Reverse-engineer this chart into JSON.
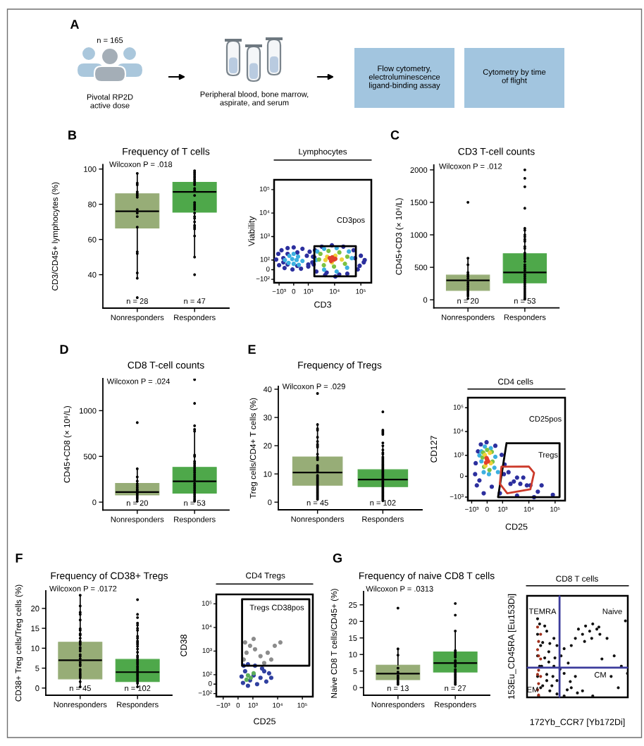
{
  "chart_data": [
    {
      "type": "other",
      "annotations": [
        "A",
        "n = 165",
        "Pivotal RP2D\nactive dose",
        "Peripheral blood, bone marrow,\naspirate, and serum",
        "Flow cytometry,\nelectroluminescence\nligand-binding assay",
        "Cytometry by time\nof flight"
      ]
    },
    {
      "type": "box",
      "title": "Frequency of T cells",
      "ylabel": "CD3/CD45+ lymphocytes (%)",
      "categories": [
        "Nonresponders",
        "Responders"
      ],
      "boxes": [
        {
          "low": 38,
          "q1": 66.5,
          "median": 76,
          "q3": 86,
          "high": 97.5
        },
        {
          "low": 50,
          "q1": 75.5,
          "median": 87,
          "q3": 92.5,
          "high": 99
        }
      ],
      "colors": [
        "#97ad77",
        "#4ea84a"
      ],
      "ylim": [
        21,
        102.5
      ],
      "yticks": [
        40,
        60,
        80,
        100
      ],
      "annotations": [
        "B",
        "Wilcoxon P = .018",
        "n = 28",
        "n = 47"
      ],
      "series": [
        {
          "type": "scatter",
          "color": "#000000",
          "x": [
            "Nonresponders",
            "Nonresponders",
            "Nonresponders",
            "Nonresponders",
            "Nonresponders",
            "Nonresponders",
            "Nonresponders",
            "Nonresponders",
            "Nonresponders",
            "Nonresponders",
            "Nonresponders",
            "Nonresponders",
            "Nonresponders",
            "Nonresponders",
            "Nonresponders",
            "Nonresponders"
          ],
          "values": [
            97.5,
            92,
            91,
            87,
            86,
            85,
            84,
            77,
            75,
            73,
            67,
            53,
            52,
            41,
            38,
            27
          ]
        },
        {
          "type": "scatter",
          "color": "#000000",
          "x": [
            "Responders",
            "Responders",
            "Responders",
            "Responders",
            "Responders",
            "Responders",
            "Responders",
            "Responders",
            "Responders",
            "Responders",
            "Responders",
            "Responders",
            "Responders",
            "Responders",
            "Responders",
            "Responders",
            "Responders",
            "Responders",
            "Responders",
            "Responders",
            "Responders",
            "Responders",
            "Responders",
            "Responders",
            "Responders",
            "Responders",
            "Responders"
          ],
          "values": [
            99,
            98,
            97,
            96,
            95,
            94,
            93,
            92,
            91,
            89,
            88,
            85,
            81,
            80,
            79,
            78,
            77,
            75,
            73,
            72,
            70,
            68,
            67,
            66,
            62,
            50,
            40
          ]
        }
      ]
    },
    {
      "type": "other",
      "title": "Lymphocytes",
      "xlabel": "CD3",
      "ylabel": "Viability",
      "annotations": [
        "CD3pos",
        "−10³",
        "0",
        "10³",
        "10⁴",
        "10⁵",
        "−10²",
        "0",
        "10²",
        "10³",
        "10⁴",
        "10⁵"
      ]
    },
    {
      "type": "box",
      "title": "CD3 T-cell counts",
      "ylabel": "CD45+CD3 (× 10⁶/L)",
      "categories": [
        "Nonresponders",
        "Responders"
      ],
      "boxes": [
        {
          "low": 20,
          "q1": 145,
          "median": 300,
          "q3": 380,
          "high": 640
        },
        {
          "low": 10,
          "q1": 260,
          "median": 420,
          "q3": 710,
          "high": 1100
        }
      ],
      "colors": [
        "#97ad77",
        "#4ea84a"
      ],
      "ylim": [
        -125,
        2075
      ],
      "yticks": [
        0,
        500,
        1000,
        1500,
        2000
      ],
      "annotations": [
        "C",
        "Wilcoxon P = .012",
        "n = 20",
        "n = 53"
      ],
      "series": [
        {
          "type": "scatter",
          "color": "#000000",
          "x": [
            "Nonresponders",
            "Nonresponders",
            "Nonresponders",
            "Nonresponders",
            "Nonresponders",
            "Nonresponders",
            "Nonresponders",
            "Nonresponders",
            "Nonresponders",
            "Nonresponders",
            "Nonresponders",
            "Nonresponders",
            "Nonresponders",
            "Nonresponders",
            "Nonresponders",
            "Nonresponders"
          ],
          "values": [
            1500,
            640,
            540,
            420,
            390,
            360,
            330,
            270,
            240,
            210,
            180,
            150,
            120,
            90,
            60,
            20
          ]
        },
        {
          "type": "scatter",
          "color": "#000000",
          "x": [
            "Responders",
            "Responders",
            "Responders",
            "Responders",
            "Responders",
            "Responders",
            "Responders",
            "Responders",
            "Responders",
            "Responders",
            "Responders",
            "Responders",
            "Responders",
            "Responders",
            "Responders",
            "Responders",
            "Responders",
            "Responders",
            "Responders",
            "Responders",
            "Responders",
            "Responders",
            "Responders",
            "Responders",
            "Responders",
            "Responders",
            "Responders",
            "Responders",
            "Responders",
            "Responders",
            "Responders",
            "Responders",
            "Responders",
            "Responders",
            "Responders"
          ],
          "values": [
            2000,
            1870,
            1740,
            1410,
            1100,
            1070,
            1000,
            970,
            930,
            900,
            820,
            790,
            720,
            690,
            660,
            630,
            590,
            540,
            510,
            480,
            450,
            390,
            360,
            330,
            300,
            270,
            240,
            210,
            180,
            150,
            120,
            90,
            60,
            30,
            10
          ]
        }
      ]
    },
    {
      "type": "box",
      "title": "CD8 T-cell counts",
      "ylabel": "CD45+CD8 (× 10⁶/L)",
      "categories": [
        "Nonresponders",
        "Responders"
      ],
      "boxes": [
        {
          "low": 10,
          "q1": 78,
          "median": 110,
          "q3": 205,
          "high": 365
        },
        {
          "low": 10,
          "q1": 98,
          "median": 227,
          "q3": 381,
          "high": 795
        }
      ],
      "colors": [
        "#97ad77",
        "#4ea84a"
      ],
      "ylim": [
        -86,
        1350
      ],
      "yticks": [
        0,
        500,
        1000
      ],
      "annotations": [
        "D",
        "Wilcoxon P = .024",
        "n = 20",
        "n = 53"
      ],
      "series": [
        {
          "type": "scatter",
          "color": "#000000",
          "x": [
            "Nonresponders",
            "Nonresponders",
            "Nonresponders",
            "Nonresponders",
            "Nonresponders",
            "Nonresponders",
            "Nonresponders",
            "Nonresponders",
            "Nonresponders",
            "Nonresponders",
            "Nonresponders",
            "Nonresponders",
            "Nonresponders",
            "Nonresponders"
          ],
          "values": [
            870,
            365,
            275,
            230,
            200,
            180,
            160,
            140,
            125,
            95,
            75,
            55,
            35,
            10
          ]
        },
        {
          "type": "scatter",
          "color": "#000000",
          "x": [
            "Responders",
            "Responders",
            "Responders",
            "Responders",
            "Responders",
            "Responders",
            "Responders",
            "Responders",
            "Responders",
            "Responders",
            "Responders",
            "Responders",
            "Responders",
            "Responders",
            "Responders",
            "Responders",
            "Responders",
            "Responders",
            "Responders",
            "Responders",
            "Responders",
            "Responders",
            "Responders",
            "Responders",
            "Responders",
            "Responders",
            "Responders",
            "Responders",
            "Responders"
          ],
          "values": [
            1340,
            1080,
            835,
            795,
            775,
            515,
            500,
            445,
            425,
            405,
            385,
            365,
            345,
            325,
            305,
            285,
            265,
            245,
            205,
            185,
            165,
            145,
            125,
            105,
            85,
            65,
            45,
            25,
            10
          ]
        }
      ]
    },
    {
      "type": "box",
      "title": "Frequency of Tregs",
      "ylabel": "Treg cells/CD4+ T cells (%)",
      "categories": [
        "Nonresponders",
        "Responders"
      ],
      "boxes": [
        {
          "low": 1,
          "q1": 6,
          "median": 10.5,
          "q3": 16,
          "high": 27.5
        },
        {
          "low": 0.5,
          "q1": 5.5,
          "median": 8,
          "q3": 11.5,
          "high": 20
        }
      ],
      "colors": [
        "#97ad77",
        "#4ea84a"
      ],
      "ylim": [
        -2.7,
        41
      ],
      "yticks": [
        0,
        10,
        20,
        30,
        40
      ],
      "annotations": [
        "E",
        "Wilcoxon P = .029",
        "n = 45",
        "n = 102"
      ],
      "series": [
        {
          "type": "scatter",
          "color": "#000000",
          "x": [
            "Nonresponders",
            "Nonresponders",
            "Nonresponders",
            "Nonresponders",
            "Nonresponders",
            "Nonresponders",
            "Nonresponders",
            "Nonresponders",
            "Nonresponders",
            "Nonresponders",
            "Nonresponders",
            "Nonresponders",
            "Nonresponders",
            "Nonresponders",
            "Nonresponders",
            "Nonresponders",
            "Nonresponders",
            "Nonresponders",
            "Nonresponders",
            "Nonresponders",
            "Nonresponders",
            "Nonresponders",
            "Nonresponders",
            "Nonresponders",
            "Nonresponders",
            "Nonresponders",
            "Nonresponders",
            "Nonresponders",
            "Nonresponders",
            "Nonresponders",
            "Nonresponders",
            "Nonresponders",
            "Nonresponders",
            "Nonresponders",
            "Nonresponders",
            "Nonresponders"
          ],
          "values": [
            38.5,
            27.5,
            26,
            25.5,
            23,
            21.5,
            20.5,
            20,
            19.5,
            17,
            16,
            15.5,
            15,
            13,
            12.5,
            12,
            11.5,
            11,
            9.5,
            9,
            8.5,
            8,
            7.5,
            7,
            6.5,
            6,
            5.5,
            5,
            4.5,
            4,
            3.5,
            3,
            2.5,
            2,
            1.5,
            1
          ]
        },
        {
          "type": "scatter",
          "color": "#000000",
          "x": [
            "Responders",
            "Responders",
            "Responders",
            "Responders",
            "Responders",
            "Responders",
            "Responders",
            "Responders",
            "Responders",
            "Responders",
            "Responders",
            "Responders",
            "Responders",
            "Responders",
            "Responders",
            "Responders",
            "Responders",
            "Responders",
            "Responders",
            "Responders",
            "Responders",
            "Responders",
            "Responders",
            "Responders",
            "Responders",
            "Responders",
            "Responders",
            "Responders",
            "Responders",
            "Responders",
            "Responders",
            "Responders",
            "Responders",
            "Responders",
            "Responders",
            "Responders",
            "Responders",
            "Responders",
            "Responders",
            "Responders",
            "Responders"
          ],
          "values": [
            32,
            25.5,
            25,
            24.5,
            24,
            21,
            20,
            18.5,
            17.5,
            17,
            16,
            15.5,
            15,
            14.5,
            14,
            13.5,
            13,
            12.5,
            12,
            11.5,
            11,
            10.5,
            10,
            9.5,
            9,
            8.5,
            7.5,
            7,
            6.5,
            6,
            5.5,
            5,
            4.5,
            4,
            3.5,
            3,
            2.5,
            2,
            1.5,
            1,
            0.5
          ]
        }
      ]
    },
    {
      "type": "other",
      "title": "CD4 cells",
      "xlabel": "CD25",
      "ylabel": "CD127",
      "annotations": [
        "CD25pos",
        "Tregs",
        "−10³",
        "0",
        "10³",
        "10⁴",
        "10⁵",
        "−10³",
        "0",
        "10³",
        "10⁴",
        "10⁵"
      ]
    },
    {
      "type": "box",
      "title": "Frequency of CD38+ Tregs",
      "ylabel": "CD38+ Treg cells/Treg cells (%)",
      "categories": [
        "Nonresponders",
        "Responders"
      ],
      "boxes": [
        {
          "low": 0.3,
          "q1": 2.3,
          "median": 7,
          "q3": 11.5,
          "high": 23.3
        },
        {
          "low": 0.3,
          "q1": 1.6,
          "median": 4,
          "q3": 7.2,
          "high": 16.3
        }
      ],
      "colors": [
        "#97ad77",
        "#4ea84a"
      ],
      "ylim": [
        -1.8,
        24.4
      ],
      "yticks": [
        0,
        5,
        10,
        15,
        20
      ],
      "annotations": [
        "F",
        "Wilcoxon P = .0172",
        "n = 45",
        "n = 102"
      ],
      "series": [
        {
          "type": "scatter",
          "color": "#000000",
          "x": [
            "Nonresponders",
            "Nonresponders",
            "Nonresponders",
            "Nonresponders",
            "Nonresponders",
            "Nonresponders",
            "Nonresponders",
            "Nonresponders",
            "Nonresponders",
            "Nonresponders",
            "Nonresponders",
            "Nonresponders",
            "Nonresponders",
            "Nonresponders",
            "Nonresponders",
            "Nonresponders",
            "Nonresponders",
            "Nonresponders",
            "Nonresponders",
            "Nonresponders",
            "Nonresponders",
            "Nonresponders",
            "Nonresponders",
            "Nonresponders",
            "Nonresponders",
            "Nonresponders",
            "Nonresponders",
            "Nonresponders",
            "Nonresponders",
            "Nonresponders"
          ],
          "values": [
            23.3,
            20.6,
            19,
            18.5,
            17.1,
            14.9,
            14.5,
            13.6,
            13.3,
            12.5,
            11.7,
            11.3,
            10.9,
            10.2,
            9.8,
            9.3,
            8.4,
            8,
            7.4,
            6.5,
            6,
            5.6,
            4.7,
            4.3,
            3.8,
            3.4,
            3,
            2.6,
            1.6,
            0.3
          ]
        },
        {
          "type": "scatter",
          "color": "#000000",
          "x": [
            "Responders",
            "Responders",
            "Responders",
            "Responders",
            "Responders",
            "Responders",
            "Responders",
            "Responders",
            "Responders",
            "Responders",
            "Responders",
            "Responders",
            "Responders",
            "Responders",
            "Responders",
            "Responders",
            "Responders",
            "Responders",
            "Responders",
            "Responders",
            "Responders",
            "Responders",
            "Responders",
            "Responders",
            "Responders",
            "Responders",
            "Responders",
            "Responders",
            "Responders",
            "Responders",
            "Responders",
            "Responders",
            "Responders"
          ],
          "values": [
            22.2,
            18.5,
            17.7,
            16.3,
            15.8,
            15,
            14.5,
            13,
            12.5,
            11.8,
            11.4,
            11,
            10.5,
            9.8,
            9,
            8.1,
            7.7,
            7.2,
            6.8,
            6.4,
            6,
            5.5,
            5.1,
            4.7,
            4.3,
            3.6,
            3.2,
            2.8,
            2.4,
            2,
            1.6,
            1.2,
            0.3
          ]
        }
      ]
    },
    {
      "type": "other",
      "title": "CD4 Tregs",
      "xlabel": "CD25",
      "ylabel": "CD38",
      "annotations": [
        "Tregs CD38pos",
        "−10³",
        "0",
        "10³",
        "10⁴",
        "10⁵",
        "−10²",
        "0",
        "10²",
        "10³",
        "10⁴",
        "10⁵"
      ]
    },
    {
      "type": "box",
      "title": "Frequency of naive CD8 T cells",
      "ylabel": "Naive CD8 T cells/CD45+ (%)",
      "categories": [
        "Nonresponders",
        "Responders"
      ],
      "boxes": [
        {
          "low": 1,
          "q1": 2.4,
          "median": 4.2,
          "q3": 6.8,
          "high": 11.7
        },
        {
          "low": 1,
          "q1": 4.7,
          "median": 7.4,
          "q3": 10.8,
          "high": 17.1
        }
      ],
      "colors": [
        "#97ad77",
        "#4ea84a"
      ],
      "ylim": [
        -2.3,
        29
      ],
      "yticks": [
        0,
        5,
        10,
        15,
        20,
        25
      ],
      "annotations": [
        "G",
        "Wilcoxon P = .0313",
        "n = 13",
        "n = 27"
      ],
      "series": [
        {
          "type": "scatter",
          "color": "#000000",
          "x": [
            "Nonresponders",
            "Nonresponders",
            "Nonresponders",
            "Nonresponders",
            "Nonresponders",
            "Nonresponders",
            "Nonresponders",
            "Nonresponders",
            "Nonresponders",
            "Nonresponders",
            "Nonresponders"
          ],
          "values": [
            24,
            11.7,
            9.8,
            5.9,
            4.7,
            3.6,
            3.1,
            2.6,
            2,
            1.5,
            1
          ]
        },
        {
          "type": "scatter",
          "color": "#000000",
          "x": [
            "Responders",
            "Responders",
            "Responders",
            "Responders",
            "Responders",
            "Responders",
            "Responders",
            "Responders",
            "Responders",
            "Responders",
            "Responders",
            "Responders",
            "Responders",
            "Responders",
            "Responders",
            "Responders",
            "Responders",
            "Responders",
            "Responders",
            "Responders",
            "Responders",
            "Responders"
          ],
          "values": [
            25.4,
            21.9,
            17.1,
            11.2,
            10.7,
            10.2,
            9.7,
            9.2,
            8.2,
            7.8,
            6.9,
            6.4,
            5.5,
            5,
            4.5,
            4,
            3.5,
            3,
            2.5,
            2,
            1.5,
            1
          ]
        }
      ]
    },
    {
      "type": "other",
      "title": "CD8 T cells",
      "xlabel": "172Yb_CCR7 [Yb172Di]",
      "ylabel": "153Eu_CD45RA [Eu153Di]",
      "annotations": [
        "TEMRA",
        "Naive",
        "EM",
        "CM"
      ]
    }
  ]
}
